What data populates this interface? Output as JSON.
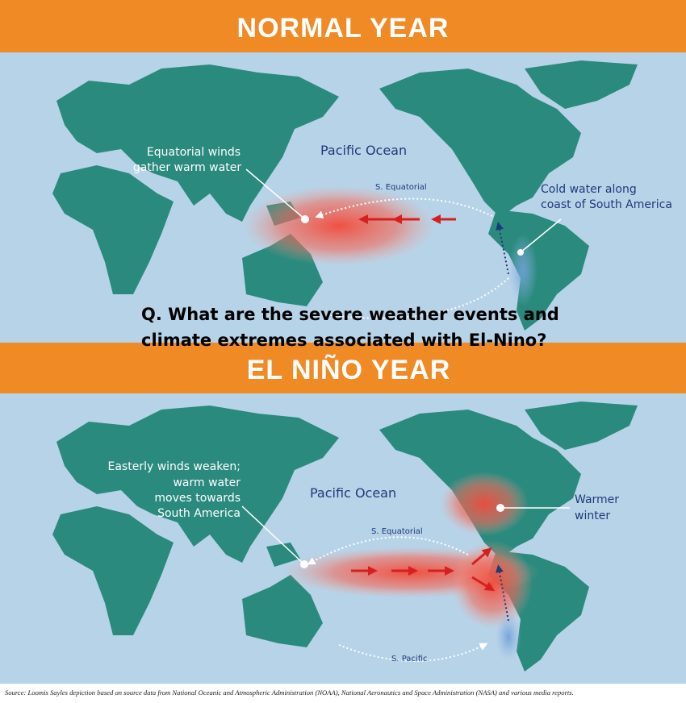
{
  "normal": {
    "title": "NORMAL YEAR",
    "winds_label": [
      "Equatorial winds",
      "gather warm water"
    ],
    "ocean": "Pacific Ocean",
    "current": "S. Equatorial",
    "cold_label": [
      "Cold water along",
      "coast of South America"
    ]
  },
  "question": [
    "Q. What are the severe weather events and",
    "climate extremes associated with El-Nino?"
  ],
  "el_nino": {
    "title": "EL NIÑO YEAR",
    "winds_label": [
      "Easterly winds weaken;",
      "warm water",
      "moves towards",
      "South America"
    ],
    "ocean": "Pacific Ocean",
    "current": "S. Equatorial",
    "winter_label": [
      "Warmer",
      "winter"
    ],
    "south_current": "S. Pacific"
  },
  "source": "Source: Loomis Sayles depiction based on source data from National Oceanic and Atmospheric Administration (NOAA), National Aeronautics and Space Administration (NASA) and various media reports."
}
